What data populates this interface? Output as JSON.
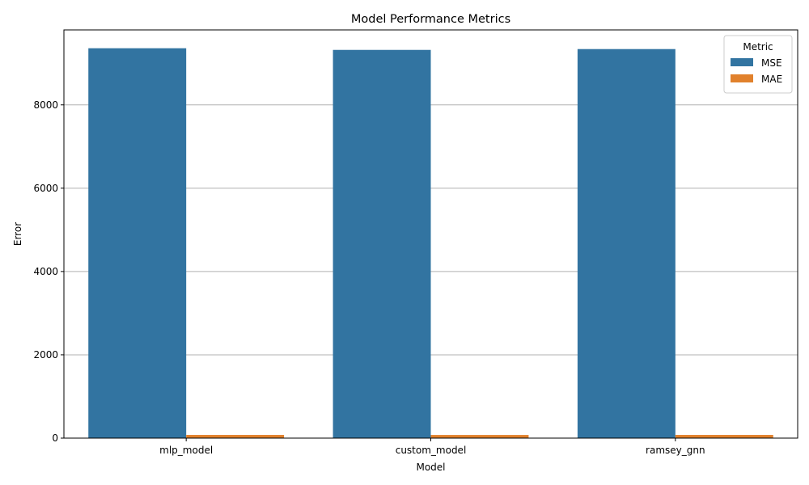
{
  "chart_data": {
    "type": "bar",
    "title": "Model Performance Metrics",
    "xlabel": "Model",
    "ylabel": "Error",
    "categories": [
      "mlp_model",
      "custom_model",
      "ramsey_gnn"
    ],
    "series": [
      {
        "name": "MSE",
        "values": [
          9360,
          9320,
          9340
        ],
        "color": "#3274a1"
      },
      {
        "name": "MAE",
        "values": [
          77,
          76,
          77
        ],
        "color": "#e1812c"
      }
    ],
    "ylim": [
      0,
      9800
    ],
    "yticks": [
      0,
      2000,
      4000,
      6000,
      8000
    ],
    "grid": "y",
    "legend": {
      "title": "Metric",
      "placement": "top-right"
    }
  }
}
